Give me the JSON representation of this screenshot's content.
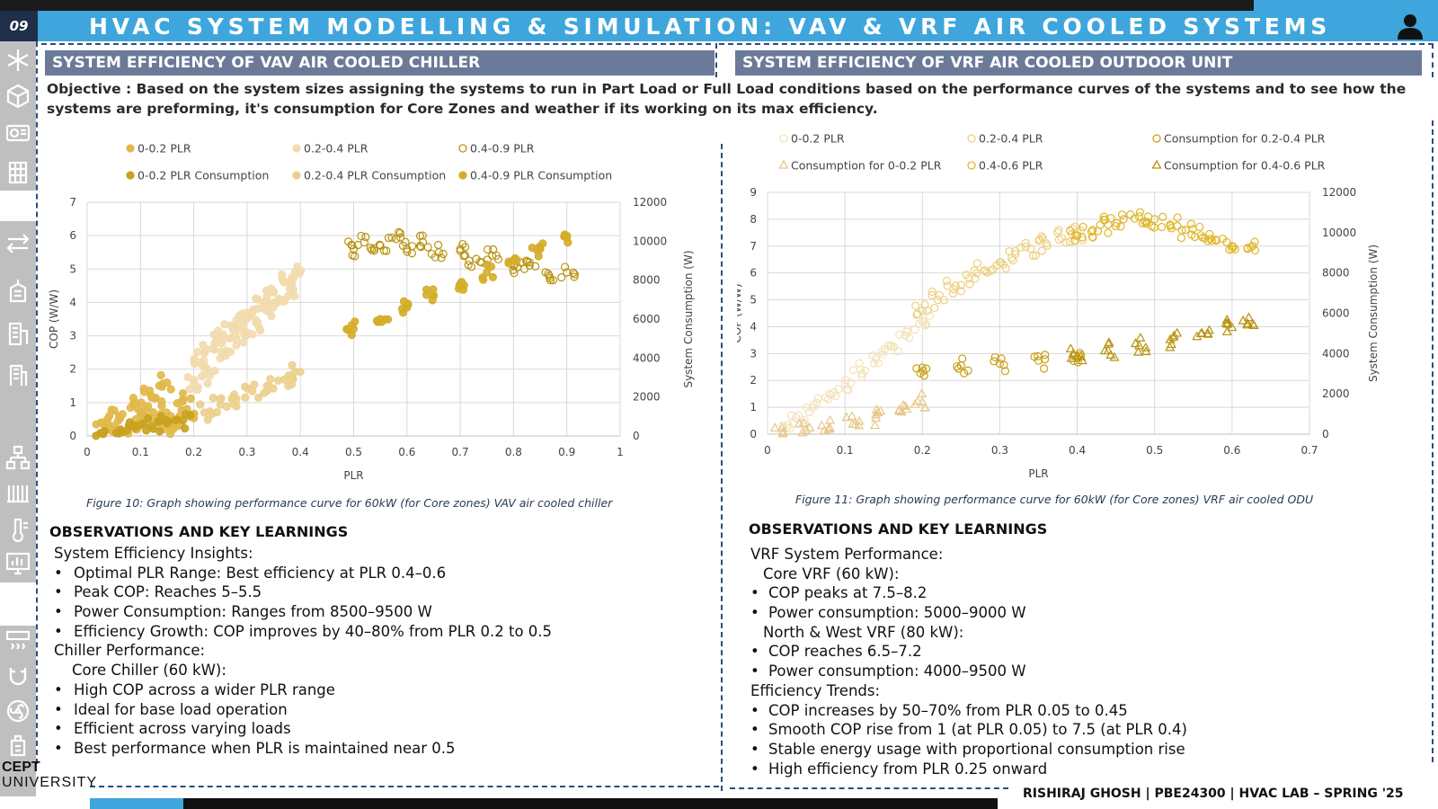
{
  "header": {
    "slide_number": "09",
    "title": "HVAC SYSTEM MODELLING & SIMULATION: VAV & VRF AIR COOLED SYSTEMS",
    "user_icon": "user-icon"
  },
  "sidebar": {
    "icons": [
      "snowflake-icon",
      "cube-icon",
      "ac-unit-icon",
      "building-grid-icon",
      "arrows-icon",
      "building-icon",
      "tower-icon",
      "office-icon",
      "hierarchy-icon",
      "radiator-icon",
      "thermometer-icon",
      "monitor-chart-icon",
      "air-vent-icon",
      "magnet-icon",
      "fan-icon",
      "sensor-icon"
    ]
  },
  "left": {
    "section_title": "SYSTEM EFFICIENCY OF VAV AIR COOLED CHILLER",
    "caption": "Figure 10: Graph showing performance curve for 60kW (for Core zones) VAV air cooled chiller",
    "obs_title": "OBSERVATIONS AND KEY LEARNINGS",
    "obs_lines": [
      {
        "bullet": "",
        "text": "System Efficiency Insights:",
        "indent": 0
      },
      {
        "bullet": "•",
        "text": "Optimal PLR Range: Best efficiency at PLR 0.4–0.6",
        "indent": 1
      },
      {
        "bullet": "•",
        "text": "Peak COP: Reaches 5–5.5",
        "indent": 1
      },
      {
        "bullet": "•",
        "text": "Power Consumption: Ranges from 8500–9500 W",
        "indent": 1
      },
      {
        "bullet": "•",
        "text": "Efficiency Growth: COP improves by 40–80% from PLR 0.2 to 0.5",
        "indent": 1
      },
      {
        "bullet": "",
        "text": "Chiller Performance:",
        "indent": 0
      },
      {
        "bullet": "",
        "text": "Core Chiller (60 kW):",
        "indent": 2
      },
      {
        "bullet": "•",
        "text": "High COP across a wider PLR range",
        "indent": 1
      },
      {
        "bullet": "•",
        "text": "Ideal for base load operation",
        "indent": 1
      },
      {
        "bullet": "•",
        "text": "Efficient across varying loads",
        "indent": 1
      },
      {
        "bullet": "•",
        "text": "Best performance when PLR is maintained near 0.5",
        "indent": 1
      }
    ]
  },
  "right": {
    "section_title": "SYSTEM EFFICIENCY OF VRF AIR COOLED OUTDOOR UNIT",
    "caption": "Figure 11: Graph showing performance curve for 60kW (for Core zones) VRF air cooled ODU",
    "obs_title": "OBSERVATIONS AND KEY LEARNINGS",
    "obs_lines": [
      {
        "bullet": "",
        "text": "VRF System Performance:",
        "indent": 0
      },
      {
        "bullet": "",
        "text": "Core VRF (60 kW):",
        "indent": 3
      },
      {
        "bullet": "•",
        "text": "COP peaks at 7.5–8.2",
        "indent": 4
      },
      {
        "bullet": "•",
        "text": "Power consumption: 5000–9000 W",
        "indent": 4
      },
      {
        "bullet": "",
        "text": "North & West VRF (80 kW):",
        "indent": 3
      },
      {
        "bullet": "•",
        "text": "COP reaches 6.5–7.2",
        "indent": 4
      },
      {
        "bullet": "•",
        "text": "Power consumption: 4000–9500 W",
        "indent": 4
      },
      {
        "bullet": "",
        "text": "Efficiency Trends:",
        "indent": 0
      },
      {
        "bullet": "•",
        "text": "COP increases by 50–70% from PLR 0.05 to 0.45",
        "indent": 4
      },
      {
        "bullet": "•",
        "text": "Smooth COP rise from 1 (at PLR 0.05) to 7.5 (at PLR 0.4)",
        "indent": 4
      },
      {
        "bullet": "•",
        "text": "Stable energy usage with proportional consumption rise",
        "indent": 4
      },
      {
        "bullet": "•",
        "text": "High efficiency from PLR 0.25 onward",
        "indent": 4
      }
    ]
  },
  "objective": "Objective : Based on the system sizes assigning the systems to run in Part Load or Full Load conditions based on the performance curves of the systems and to see how the systems are preforming, it's consumption for Core Zones and weather if its working on its max efficiency.",
  "footer": {
    "logo_top": "CEPT",
    "logo_bottom": "UNIVERSITY",
    "credit": "RISHIRAJ GHOSH | PBE24300 | HVAC LAB – SPRING '25"
  },
  "colors": {
    "header_blue": "#3fa6dd",
    "section_bar": "#6b7a99",
    "panel_dash": "#2e4d7a",
    "gold_dark": "#b8920f",
    "gold": "#d4ae2a",
    "gold_light": "#e8c76a",
    "beige": "#f0d9a4"
  },
  "chart_data": [
    {
      "type": "scatter",
      "title": "",
      "xlabel": "PLR",
      "ylabel": "COP (W/W)",
      "y2label": "System Consumption (W)",
      "xlim": [
        0,
        1
      ],
      "ylim": [
        0,
        7
      ],
      "y2lim": [
        0,
        12000
      ],
      "x_ticks": [
        "0",
        "0.1",
        "0.2",
        "0.3",
        "0.4",
        "0.5",
        "0.6",
        "0.7",
        "0.8",
        "0.9",
        "1"
      ],
      "y_ticks": [
        "0",
        "1",
        "2",
        "3",
        "4",
        "5",
        "6",
        "7"
      ],
      "y2_ticks": [
        "0",
        "2000",
        "4000",
        "6000",
        "8000",
        "10000",
        "12000"
      ],
      "grid": true,
      "legend_placement": "top",
      "series": [
        {
          "name": "0-0.2 PLR",
          "marker": "circle-filled",
          "color": "#e0b94a",
          "axis": "left",
          "points": [
            [
              0.03,
              0.4
            ],
            [
              0.05,
              0.3
            ],
            [
              0.06,
              0.6
            ],
            [
              0.08,
              0.3
            ],
            [
              0.09,
              1.0
            ],
            [
              0.1,
              0.4
            ],
            [
              0.11,
              0.8
            ],
            [
              0.12,
              1.2
            ],
            [
              0.13,
              0.4
            ],
            [
              0.14,
              0.9
            ],
            [
              0.15,
              1.6
            ],
            [
              0.16,
              0.5
            ],
            [
              0.17,
              0.3
            ],
            [
              0.18,
              1.1
            ],
            [
              0.19,
              0.6
            ]
          ]
        },
        {
          "name": "0.2-0.4 PLR",
          "marker": "circle-filled",
          "color": "#f2dcae",
          "axis": "left",
          "points": [
            [
              0.2,
              1.6
            ],
            [
              0.21,
              2.2
            ],
            [
              0.22,
              2.5
            ],
            [
              0.23,
              1.8
            ],
            [
              0.24,
              2.8
            ],
            [
              0.25,
              3.0
            ],
            [
              0.26,
              2.4
            ],
            [
              0.27,
              3.3
            ],
            [
              0.28,
              2.9
            ],
            [
              0.29,
              3.5
            ],
            [
              0.3,
              3.1
            ],
            [
              0.31,
              3.7
            ],
            [
              0.32,
              3.4
            ],
            [
              0.33,
              4.0
            ],
            [
              0.34,
              3.8
            ],
            [
              0.35,
              4.3
            ],
            [
              0.36,
              4.1
            ],
            [
              0.37,
              4.6
            ],
            [
              0.38,
              4.4
            ],
            [
              0.39,
              4.9
            ]
          ]
        },
        {
          "name": "0.4-0.9 PLR",
          "marker": "circle-open",
          "color": "#b8920f",
          "axis": "left",
          "points": [
            [
              0.5,
              5.6
            ],
            [
              0.52,
              5.8
            ],
            [
              0.55,
              5.7
            ],
            [
              0.58,
              5.9
            ],
            [
              0.6,
              5.6
            ],
            [
              0.63,
              5.8
            ],
            [
              0.66,
              5.5
            ],
            [
              0.7,
              5.6
            ],
            [
              0.73,
              5.3
            ],
            [
              0.76,
              5.4
            ],
            [
              0.8,
              5.1
            ],
            [
              0.83,
              5.2
            ],
            [
              0.86,
              4.9
            ],
            [
              0.9,
              4.9
            ]
          ]
        },
        {
          "name": "0-0.2 PLR Consumption",
          "marker": "circle-filled",
          "color": "#c9a220",
          "axis": "right",
          "points": [
            [
              0.03,
              100
            ],
            [
              0.06,
              250
            ],
            [
              0.09,
              400
            ],
            [
              0.12,
              500
            ],
            [
              0.15,
              650
            ],
            [
              0.18,
              800
            ]
          ]
        },
        {
          "name": "0.2-0.4 PLR Consumption",
          "marker": "circle-filled",
          "color": "#ecd08f",
          "axis": "right",
          "points": [
            [
              0.22,
              1200
            ],
            [
              0.25,
              1600
            ],
            [
              0.28,
              1900
            ],
            [
              0.31,
              2300
            ],
            [
              0.34,
              2600
            ],
            [
              0.37,
              2900
            ],
            [
              0.39,
              3300
            ]
          ]
        },
        {
          "name": "0.4-0.9 PLR Consumption",
          "marker": "circle-filled",
          "color": "#d4ae2a",
          "axis": "right",
          "points": [
            [
              0.5,
              5500
            ],
            [
              0.55,
              6000
            ],
            [
              0.6,
              6600
            ],
            [
              0.65,
              7200
            ],
            [
              0.7,
              7800
            ],
            [
              0.75,
              8400
            ],
            [
              0.8,
              9000
            ],
            [
              0.85,
              9600
            ],
            [
              0.9,
              10200
            ]
          ]
        }
      ]
    },
    {
      "type": "scatter",
      "title": "",
      "xlabel": "PLR",
      "ylabel": "COP (W/W)",
      "y2label": "System Consumption (W)",
      "xlim": [
        0,
        0.7
      ],
      "ylim": [
        0,
        9
      ],
      "y2lim": [
        0,
        12000
      ],
      "x_ticks": [
        "0",
        "0.1",
        "0.2",
        "0.3",
        "0.4",
        "0.5",
        "0.6",
        "0.7"
      ],
      "y_ticks": [
        "0",
        "1",
        "2",
        "3",
        "4",
        "5",
        "6",
        "7",
        "8",
        "9"
      ],
      "y2_ticks": [
        "0",
        "2000",
        "4000",
        "6000",
        "8000",
        "10000",
        "12000"
      ],
      "grid": true,
      "legend_placement": "top",
      "series": [
        {
          "name": "0-0.2 PLR",
          "marker": "circle-open",
          "color": "#f3e2b8",
          "axis": "left",
          "points": [
            [
              0.02,
              0.3
            ],
            [
              0.04,
              0.7
            ],
            [
              0.06,
              1.1
            ],
            [
              0.08,
              1.5
            ],
            [
              0.1,
              1.9
            ],
            [
              0.12,
              2.4
            ],
            [
              0.14,
              2.8
            ],
            [
              0.16,
              3.3
            ],
            [
              0.18,
              3.8
            ],
            [
              0.2,
              4.2
            ]
          ]
        },
        {
          "name": "0.2-0.4 PLR",
          "marker": "circle-open",
          "color": "#edd080",
          "axis": "left",
          "points": [
            [
              0.2,
              4.6
            ],
            [
              0.22,
              5.0
            ],
            [
              0.24,
              5.4
            ],
            [
              0.26,
              5.8
            ],
            [
              0.28,
              6.1
            ],
            [
              0.3,
              6.4
            ],
            [
              0.32,
              6.7
            ],
            [
              0.34,
              6.9
            ],
            [
              0.36,
              7.1
            ],
            [
              0.38,
              7.3
            ],
            [
              0.4,
              7.5
            ]
          ]
        },
        {
          "name": "Consumption for 0.2-0.4 PLR",
          "marker": "circle-open",
          "color": "#c9a01a",
          "axis": "right",
          "points": [
            [
              0.2,
              3300
            ],
            [
              0.25,
              3400
            ],
            [
              0.3,
              3500
            ],
            [
              0.35,
              3650
            ],
            [
              0.4,
              3800
            ]
          ]
        },
        {
          "name": "Consumption for 0-0.2 PLR",
          "marker": "triangle-open",
          "color": "#e6c88a",
          "axis": "right",
          "points": [
            [
              0.02,
              100
            ],
            [
              0.05,
              200
            ],
            [
              0.08,
              350
            ],
            [
              0.11,
              500
            ],
            [
              0.14,
              800
            ],
            [
              0.17,
              1200
            ],
            [
              0.2,
              1600
            ]
          ]
        },
        {
          "name": "0.4-0.6 PLR",
          "marker": "circle-open",
          "color": "#e0b62a",
          "axis": "left",
          "points": [
            [
              0.4,
              7.4
            ],
            [
              0.42,
              7.6
            ],
            [
              0.44,
              7.8
            ],
            [
              0.46,
              8.0
            ],
            [
              0.48,
              8.1
            ],
            [
              0.5,
              8.0
            ],
            [
              0.52,
              7.8
            ],
            [
              0.54,
              7.6
            ],
            [
              0.56,
              7.4
            ],
            [
              0.58,
              7.2
            ],
            [
              0.6,
              7.0
            ],
            [
              0.62,
              6.9
            ]
          ]
        },
        {
          "name": "Consumption for 0.4-0.6 PLR",
          "marker": "triangle-open",
          "color": "#b8920f",
          "axis": "right",
          "points": [
            [
              0.4,
              3900
            ],
            [
              0.44,
              4150
            ],
            [
              0.48,
              4400
            ],
            [
              0.52,
              4700
            ],
            [
              0.56,
              5000
            ],
            [
              0.6,
              5300
            ],
            [
              0.62,
              5500
            ]
          ]
        }
      ]
    }
  ]
}
